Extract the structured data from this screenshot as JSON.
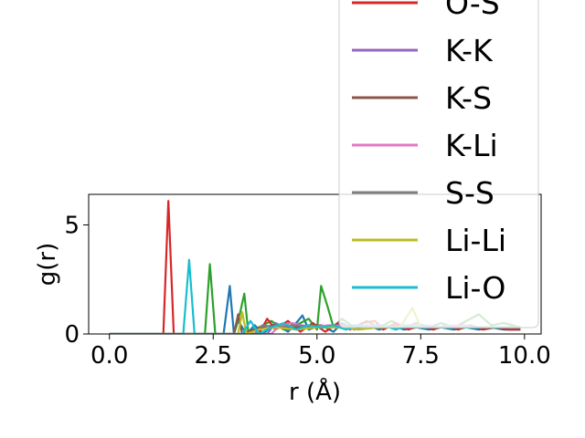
{
  "chart_data": {
    "type": "line",
    "xlabel": "r (Å)",
    "ylabel": "g(r)",
    "xlim": [
      -0.5,
      10.4
    ],
    "ylim": [
      0,
      6.4
    ],
    "x_ticks": [
      {
        "value": 0.0,
        "label": "0.0"
      },
      {
        "value": 2.5,
        "label": "2.5"
      },
      {
        "value": 5.0,
        "label": "5.0"
      },
      {
        "value": 7.5,
        "label": "7.5"
      },
      {
        "value": 10.0,
        "label": "10.0"
      }
    ],
    "y_ticks": [
      {
        "value": 0,
        "label": "0"
      },
      {
        "value": 5,
        "label": "5"
      }
    ],
    "grid": false,
    "legend_position": "top-right, overflowing above the plot",
    "legend_visible_labels": [
      "O-S",
      "K-K",
      "K-S",
      "K-Li",
      "S-S",
      "Li-Li",
      "Li-O"
    ],
    "series": [
      {
        "color": "#1f77b4",
        "points": [
          [
            0,
            0
          ],
          [
            2.6,
            0
          ],
          [
            2.75,
            0
          ],
          [
            2.9,
            2.2
          ],
          [
            3.0,
            0
          ],
          [
            3.1,
            0.6
          ],
          [
            3.3,
            0
          ],
          [
            3.5,
            0.4
          ],
          [
            3.7,
            0
          ],
          [
            4.0,
            0.5
          ],
          [
            4.3,
            0.1
          ],
          [
            4.5,
            0.5
          ],
          [
            4.65,
            0.85
          ],
          [
            4.8,
            0.2
          ],
          [
            5.1,
            0.4
          ],
          [
            5.4,
            0.1
          ],
          [
            5.6,
            0.5
          ],
          [
            5.9,
            0.2
          ],
          [
            6.2,
            0.4
          ],
          [
            6.5,
            0.2
          ],
          [
            6.8,
            0.4
          ],
          [
            7.1,
            0.2
          ],
          [
            7.4,
            0.3
          ],
          [
            7.7,
            0.2
          ],
          [
            8.0,
            0.3
          ],
          [
            8.3,
            0.2
          ],
          [
            8.6,
            0.3
          ],
          [
            8.9,
            0.2
          ],
          [
            9.2,
            0.3
          ],
          [
            9.5,
            0.2
          ],
          [
            9.9,
            0.2
          ]
        ]
      },
      {
        "color": "#2ca02c",
        "points": [
          [
            0,
            0
          ],
          [
            2.2,
            0
          ],
          [
            2.3,
            0
          ],
          [
            2.42,
            3.2
          ],
          [
            2.55,
            0
          ],
          [
            3.0,
            0
          ],
          [
            3.15,
            1.0
          ],
          [
            3.25,
            1.85
          ],
          [
            3.35,
            0
          ],
          [
            3.6,
            0.3
          ],
          [
            3.9,
            0.6
          ],
          [
            4.2,
            0.2
          ],
          [
            4.5,
            0.4
          ],
          [
            4.8,
            0.7
          ],
          [
            5.0,
            0.2
          ],
          [
            5.1,
            2.2
          ],
          [
            5.25,
            1.3
          ],
          [
            5.4,
            0.3
          ],
          [
            5.6,
            0.7
          ],
          [
            5.9,
            0.3
          ],
          [
            6.2,
            0.6
          ],
          [
            6.5,
            0.3
          ],
          [
            6.8,
            0.6
          ],
          [
            7.1,
            0.3
          ],
          [
            7.4,
            0.5
          ],
          [
            7.7,
            0.3
          ],
          [
            8.0,
            0.5
          ],
          [
            8.3,
            0.3
          ],
          [
            8.6,
            0.6
          ],
          [
            8.9,
            0.9
          ],
          [
            9.2,
            0.4
          ],
          [
            9.5,
            0.5
          ],
          [
            9.9,
            0.3
          ]
        ]
      },
      {
        "color": "#d62728",
        "points": [
          [
            0,
            0
          ],
          [
            1.3,
            0
          ],
          [
            1.42,
            6.1
          ],
          [
            1.55,
            0
          ],
          [
            2.0,
            0
          ],
          [
            3.6,
            0
          ],
          [
            3.8,
            0.7
          ],
          [
            4.0,
            0.2
          ],
          [
            4.3,
            0.6
          ],
          [
            4.6,
            0.1
          ],
          [
            4.9,
            0.5
          ],
          [
            5.2,
            0.1
          ],
          [
            5.5,
            0.5
          ],
          [
            5.8,
            0.2
          ],
          [
            6.1,
            0.5
          ],
          [
            6.4,
            0.6
          ],
          [
            6.6,
            0.2
          ],
          [
            6.9,
            0.5
          ],
          [
            7.2,
            0.2
          ],
          [
            7.5,
            0.4
          ],
          [
            7.8,
            0.2
          ],
          [
            8.1,
            0.4
          ],
          [
            8.4,
            0.2
          ],
          [
            8.7,
            0.4
          ],
          [
            9.0,
            0.2
          ],
          [
            9.3,
            0.3
          ],
          [
            9.6,
            0.2
          ],
          [
            9.9,
            0.2
          ]
        ]
      },
      {
        "color": "#9467bd",
        "points": [
          [
            0,
            0
          ],
          [
            3.8,
            0
          ],
          [
            4.0,
            0.5
          ],
          [
            4.3,
            0.2
          ],
          [
            4.6,
            0.4
          ],
          [
            5.0,
            0.3
          ],
          [
            5.5,
            0.4
          ],
          [
            6.0,
            0.3
          ],
          [
            6.5,
            0.4
          ],
          [
            7.0,
            0.3
          ],
          [
            7.5,
            0.4
          ],
          [
            8.0,
            0.3
          ],
          [
            8.5,
            0.4
          ],
          [
            9.0,
            0.3
          ],
          [
            9.5,
            0.3
          ],
          [
            9.9,
            0.3
          ]
        ]
      },
      {
        "color": "#8c564b",
        "points": [
          [
            0,
            0
          ],
          [
            3.0,
            0
          ],
          [
            3.1,
            0.9
          ],
          [
            3.2,
            0
          ],
          [
            3.6,
            0.3
          ],
          [
            4.0,
            0.4
          ],
          [
            4.5,
            0.3
          ],
          [
            5.0,
            0.4
          ],
          [
            5.5,
            0.3
          ],
          [
            6.0,
            0.4
          ],
          [
            6.5,
            0.3
          ],
          [
            7.0,
            0.4
          ],
          [
            7.5,
            0.3
          ],
          [
            8.0,
            0.3
          ],
          [
            8.5,
            0.3
          ],
          [
            9.0,
            0.3
          ],
          [
            9.9,
            0.3
          ]
        ]
      },
      {
        "color": "#e377c2",
        "points": [
          [
            0,
            0
          ],
          [
            3.9,
            0
          ],
          [
            4.1,
            0.4
          ],
          [
            4.4,
            0.5
          ],
          [
            4.8,
            0.3
          ],
          [
            5.3,
            0.4
          ],
          [
            5.8,
            0.3
          ],
          [
            6.3,
            0.4
          ],
          [
            6.8,
            0.3
          ],
          [
            7.3,
            0.4
          ],
          [
            7.8,
            0.3
          ],
          [
            8.3,
            0.4
          ],
          [
            8.8,
            0.3
          ],
          [
            9.3,
            0.3
          ],
          [
            9.9,
            0.3
          ]
        ]
      },
      {
        "color": "#7f7f7f",
        "points": [
          [
            0,
            0
          ],
          [
            3.5,
            0
          ],
          [
            3.7,
            0.4
          ],
          [
            4.0,
            0.3
          ],
          [
            4.5,
            0.4
          ],
          [
            5.0,
            0.3
          ],
          [
            5.5,
            0.3
          ],
          [
            6.0,
            0.3
          ],
          [
            6.5,
            0.3
          ],
          [
            7.0,
            0.3
          ],
          [
            7.5,
            0.3
          ],
          [
            8.0,
            0.3
          ],
          [
            8.5,
            0.3
          ],
          [
            9.0,
            0.3
          ],
          [
            9.9,
            0.3
          ]
        ]
      },
      {
        "color": "#bcbd22",
        "points": [
          [
            0,
            0
          ],
          [
            3.1,
            0
          ],
          [
            3.2,
            1.0
          ],
          [
            3.3,
            0
          ],
          [
            3.6,
            0.2
          ],
          [
            4.0,
            0.3
          ],
          [
            4.5,
            0.2
          ],
          [
            5.0,
            0.3
          ],
          [
            5.5,
            0.3
          ],
          [
            6.0,
            0.2
          ],
          [
            6.5,
            0.3
          ],
          [
            7.0,
            0.3
          ],
          [
            7.3,
            1.2
          ],
          [
            7.5,
            0.3
          ],
          [
            8.0,
            0.3
          ],
          [
            8.5,
            0.3
          ],
          [
            9.0,
            0.3
          ],
          [
            9.9,
            0.3
          ]
        ]
      },
      {
        "color": "#17becf",
        "points": [
          [
            0,
            0
          ],
          [
            1.78,
            0
          ],
          [
            1.92,
            3.4
          ],
          [
            2.05,
            0
          ],
          [
            3.2,
            0
          ],
          [
            3.4,
            0.6
          ],
          [
            3.6,
            0
          ],
          [
            3.9,
            0.3
          ],
          [
            4.2,
            0.5
          ],
          [
            4.5,
            0.2
          ],
          [
            4.8,
            0.4
          ],
          [
            5.1,
            0.3
          ],
          [
            5.4,
            0.4
          ],
          [
            5.7,
            0.2
          ],
          [
            6.0,
            0.4
          ],
          [
            6.3,
            0.3
          ],
          [
            6.6,
            0.4
          ],
          [
            6.9,
            0.2
          ],
          [
            7.2,
            0.4
          ],
          [
            7.5,
            0.3
          ],
          [
            7.8,
            0.3
          ],
          [
            8.1,
            0.3
          ],
          [
            8.4,
            0.3
          ],
          [
            8.7,
            0.3
          ],
          [
            9.0,
            0.3
          ],
          [
            9.3,
            0.3
          ],
          [
            9.6,
            0.3
          ],
          [
            9.9,
            0.3
          ]
        ]
      }
    ],
    "legend": [
      {
        "label": "O-S",
        "color": "#d62728"
      },
      {
        "label": "K-K",
        "color": "#9467bd"
      },
      {
        "label": "K-S",
        "color": "#8c564b"
      },
      {
        "label": "K-Li",
        "color": "#e377c2"
      },
      {
        "label": "S-S",
        "color": "#7f7f7f"
      },
      {
        "label": "Li-Li",
        "color": "#bcbd22"
      },
      {
        "label": "Li-O",
        "color": "#17becf"
      }
    ]
  }
}
